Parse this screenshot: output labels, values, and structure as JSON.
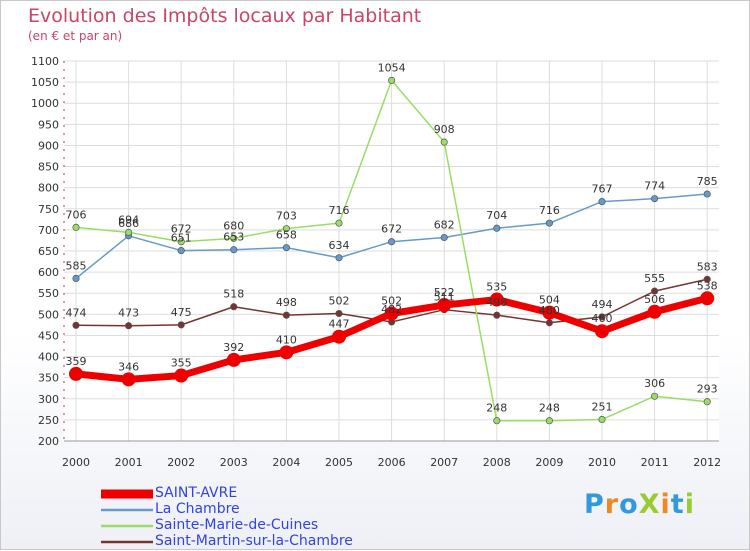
{
  "title": "Evolution des Impôts locaux par Habitant",
  "subtitle": "(en € et par an)",
  "logo": "ProXiti",
  "chart_data": {
    "type": "line",
    "title": "Evolution des Impôts locaux par Habitant",
    "subtitle": "(en € et par an)",
    "xlabel": "",
    "ylabel": "",
    "categories": [
      "2000",
      "2001",
      "2002",
      "2003",
      "2004",
      "2005",
      "2006",
      "2007",
      "2008",
      "2009",
      "2010",
      "2011",
      "2012"
    ],
    "ylim": [
      200,
      1100
    ],
    "yticks": [
      200,
      250,
      300,
      350,
      400,
      450,
      500,
      550,
      600,
      650,
      700,
      750,
      800,
      850,
      900,
      950,
      1000,
      1050,
      1100
    ],
    "grid": true,
    "legend_position": "bottom-left",
    "series": [
      {
        "name": "SAINT-AVRE",
        "color": "#ee0000",
        "values": [
          359,
          346,
          355,
          392,
          410,
          447,
          502,
          522,
          535,
          504,
          460,
          506,
          538
        ]
      },
      {
        "name": "La Chambre",
        "color": "#6699cc",
        "values": [
          585,
          686,
          651,
          653,
          658,
          634,
          672,
          682,
          704,
          716,
          767,
          774,
          785
        ]
      },
      {
        "name": "Sainte-Marie-de-Cuines",
        "color": "#99dd66",
        "values": [
          706,
          694,
          672,
          680,
          703,
          716,
          1054,
          908,
          248,
          248,
          251,
          306,
          293
        ]
      },
      {
        "name": "Saint-Martin-sur-la-Chambre",
        "color": "#773333",
        "values": [
          474,
          473,
          475,
          518,
          498,
          502,
          482,
          511,
          498,
          480,
          494,
          555,
          583
        ]
      }
    ]
  }
}
